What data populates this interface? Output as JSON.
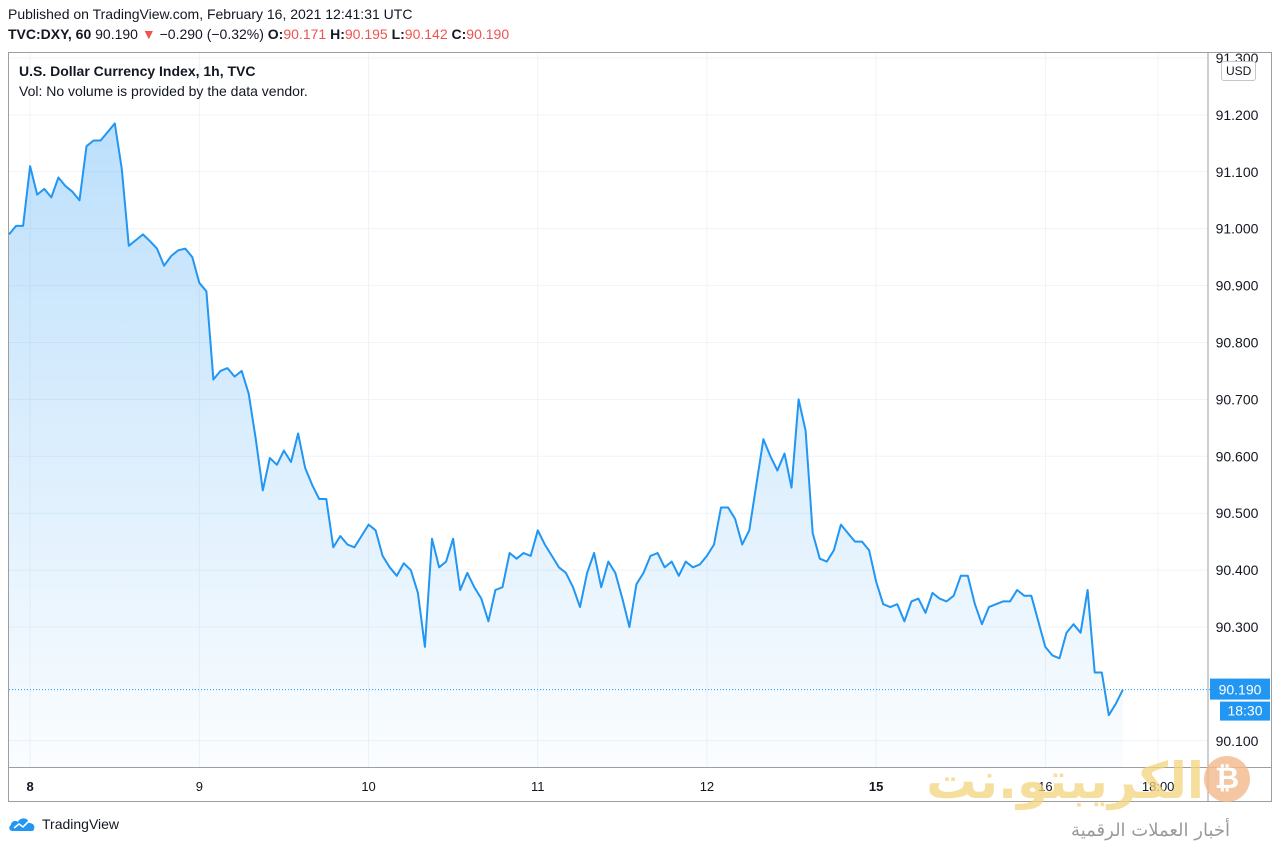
{
  "header": {
    "published": "Published on TradingView.com, February 16, 2021 12:41:31 UTC",
    "symbol": "TVC:DXY, 60",
    "last": "90.190",
    "change": "−0.290 (−0.32%)",
    "open_label": "O:",
    "open": "90.171",
    "high_label": "H:",
    "high": "90.195",
    "low_label": "L:",
    "low": "90.142",
    "close_label": "C:",
    "close": "90.190",
    "down_arrow": "▼"
  },
  "legend": {
    "title": "U.S. Dollar Currency Index, 1h, TVC",
    "volume_note": "Vol: No volume is provided by the data vendor."
  },
  "currency_badge": "USD",
  "price_label": "90.190",
  "countdown_label": "18:30",
  "footer": {
    "brand": "TradingView"
  },
  "watermark": {
    "main": "الكريبتو.نت",
    "sub": "أخبار العملات الرقمية",
    "coin_symbol": "₿"
  },
  "colors": {
    "line": "#2196f3",
    "label_bg": "#2196f3",
    "down": "#ef5350"
  },
  "chart_data": {
    "type": "area",
    "title": "U.S. Dollar Currency Index, 1h, TVC",
    "ylim": [
      90.04,
      91.3
    ],
    "y_ticks": [
      "91.300",
      "91.200",
      "91.100",
      "91.000",
      "90.900",
      "90.800",
      "90.700",
      "90.600",
      "90.500",
      "90.400",
      "90.300",
      "90.100"
    ],
    "x_ticks": [
      {
        "label": "8",
        "index": 3,
        "bold": true
      },
      {
        "label": "9",
        "index": 27,
        "bold": false
      },
      {
        "label": "10",
        "index": 51,
        "bold": false
      },
      {
        "label": "11",
        "index": 75,
        "bold": false
      },
      {
        "label": "12",
        "index": 99,
        "bold": false
      },
      {
        "label": "15",
        "index": 123,
        "bold": true
      },
      {
        "label": "16",
        "index": 147,
        "bold": false
      },
      {
        "label": "18:00",
        "index": 163,
        "bold": false
      }
    ],
    "grid": true,
    "last_value": 90.19,
    "series": [
      {
        "values": [
          90.99,
          91.005,
          91.005,
          91.11,
          91.06,
          91.07,
          91.055,
          91.09,
          91.075,
          91.065,
          91.05,
          91.145,
          91.155,
          91.155,
          91.17,
          91.185,
          91.105,
          90.97,
          90.98,
          90.99,
          90.978,
          90.965,
          90.935,
          90.952,
          90.962,
          90.965,
          90.95,
          90.905,
          90.89,
          90.735,
          90.75,
          90.755,
          90.74,
          90.75,
          90.71,
          90.63,
          90.54,
          90.597,
          90.585,
          90.61,
          90.59,
          90.64,
          90.58,
          90.55,
          90.525,
          90.525,
          90.44,
          90.46,
          90.445,
          90.44,
          90.46,
          90.48,
          90.47,
          90.425,
          90.405,
          90.39,
          90.412,
          90.4,
          90.36,
          90.265,
          90.455,
          90.405,
          90.415,
          90.455,
          90.365,
          90.395,
          90.37,
          90.35,
          90.31,
          90.365,
          90.37,
          90.43,
          90.42,
          90.43,
          90.425,
          90.47,
          90.445,
          90.425,
          90.405,
          90.395,
          90.37,
          90.335,
          90.395,
          90.43,
          90.37,
          90.415,
          90.395,
          90.35,
          90.3,
          90.375,
          90.395,
          90.425,
          90.43,
          90.405,
          90.415,
          90.39,
          90.415,
          90.405,
          90.41,
          90.425,
          90.445,
          90.51,
          90.51,
          90.49,
          90.445,
          90.47,
          90.55,
          90.63,
          90.6,
          90.575,
          90.605,
          90.545,
          90.7,
          90.645,
          90.465,
          90.42,
          90.415,
          90.435,
          90.48,
          90.465,
          90.45,
          90.45,
          90.435,
          90.38,
          90.34,
          90.335,
          90.34,
          90.31,
          90.345,
          90.35,
          90.325,
          90.36,
          90.35,
          90.345,
          90.355,
          90.39,
          90.39,
          90.34,
          90.305,
          90.335,
          90.34,
          90.345,
          90.345,
          90.365,
          90.355,
          90.355,
          90.31,
          90.265,
          90.25,
          90.245,
          90.29,
          90.305,
          90.29,
          90.365,
          90.22,
          90.22,
          90.145,
          90.165,
          90.19
        ]
      }
    ]
  }
}
